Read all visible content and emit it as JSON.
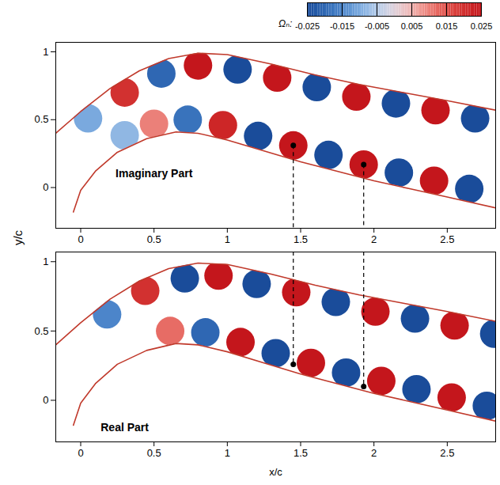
{
  "chart_data": [
    {
      "type": "contour",
      "xlim": [
        -0.17,
        2.83
      ],
      "xticks": [
        0,
        0.5,
        1,
        1.5,
        2,
        2.5
      ],
      "ylim": [
        -0.3,
        1.07
      ],
      "yticks": [
        0,
        0.5,
        1
      ],
      "colorbar": {
        "label": "Ωₙ:",
        "range": [
          -0.025,
          0.025
        ],
        "ticks": [
          -0.025,
          -0.015,
          -0.005,
          0.005,
          0.015,
          0.025
        ]
      },
      "annotations": [
        {
          "text": "Imaginary Part",
          "x": 0.5,
          "y": 0.1
        }
      ],
      "upper_boundary": {
        "x": [
          -0.17,
          0,
          0.2,
          0.4,
          0.6,
          0.8,
          1.0,
          1.3,
          1.6,
          1.9,
          2.2,
          2.5,
          2.83
        ],
        "y": [
          0.4,
          0.56,
          0.73,
          0.86,
          0.95,
          0.99,
          0.98,
          0.91,
          0.83,
          0.76,
          0.7,
          0.64,
          0.57
        ]
      },
      "lower_boundary": {
        "x": [
          -0.05,
          0,
          0.1,
          0.25,
          0.45,
          0.65,
          0.8,
          1.0,
          1.25,
          1.5,
          1.75,
          2.0,
          2.25,
          2.5,
          2.83
        ],
        "y": [
          -0.18,
          -0.02,
          0.12,
          0.26,
          0.36,
          0.41,
          0.4,
          0.35,
          0.27,
          0.19,
          0.12,
          0.05,
          -0.01,
          -0.07,
          -0.15
        ]
      },
      "cells": {
        "x": [
          0.05,
          0.3,
          0.55,
          0.8,
          1.07,
          1.34,
          1.61,
          1.88,
          2.15,
          2.42,
          2.69,
          0.3,
          0.5,
          0.73,
          0.97,
          1.21,
          1.45,
          1.69,
          1.93,
          2.17,
          2.41,
          2.65
        ],
        "y": [
          0.51,
          0.7,
          0.84,
          0.9,
          0.87,
          0.81,
          0.74,
          0.67,
          0.62,
          0.57,
          0.51,
          0.385,
          0.47,
          0.5,
          0.46,
          0.38,
          0.31,
          0.24,
          0.17,
          0.11,
          0.05,
          -0.01
        ],
        "values": [
          -0.01,
          0.02,
          -0.02,
          0.025,
          -0.025,
          0.025,
          -0.025,
          0.025,
          -0.025,
          0.025,
          -0.025,
          -0.008,
          0.01,
          -0.018,
          0.022,
          -0.025,
          0.025,
          -0.025,
          0.025,
          -0.025,
          0.025,
          -0.025
        ]
      },
      "markers": {
        "x": [
          1.45,
          1.93
        ],
        "y": [
          0.31,
          0.17
        ],
        "marker": "dot",
        "line_style": "dashed"
      }
    },
    {
      "type": "contour",
      "xlabel": "x/c",
      "ylabel": "y/c",
      "xlim": [
        -0.17,
        2.83
      ],
      "xticks": [
        0,
        0.5,
        1,
        1.5,
        2,
        2.5
      ],
      "ylim": [
        -0.3,
        1.07
      ],
      "yticks": [
        0,
        0.5,
        1
      ],
      "annotations": [
        {
          "text": "Real Part",
          "x": 0.3,
          "y": -0.2
        }
      ],
      "upper_boundary": {
        "x": [
          -0.17,
          0,
          0.2,
          0.4,
          0.6,
          0.8,
          1.0,
          1.3,
          1.6,
          1.9,
          2.2,
          2.5,
          2.83
        ],
        "y": [
          0.4,
          0.56,
          0.73,
          0.86,
          0.95,
          0.99,
          0.98,
          0.91,
          0.83,
          0.76,
          0.7,
          0.64,
          0.57
        ]
      },
      "lower_boundary": {
        "x": [
          -0.05,
          0,
          0.1,
          0.25,
          0.45,
          0.65,
          0.8,
          1.0,
          1.25,
          1.5,
          1.75,
          2.0,
          2.25,
          2.5,
          2.83
        ],
        "y": [
          -0.18,
          -0.02,
          0.12,
          0.26,
          0.36,
          0.41,
          0.4,
          0.35,
          0.27,
          0.19,
          0.12,
          0.05,
          -0.01,
          -0.07,
          -0.15
        ]
      },
      "cells": {
        "x": [
          0.18,
          0.44,
          0.71,
          0.94,
          1.2,
          1.47,
          1.74,
          2.01,
          2.28,
          2.55,
          2.82,
          0.61,
          0.85,
          1.09,
          1.33,
          1.57,
          1.81,
          2.05,
          2.29,
          2.53,
          2.77
        ],
        "y": [
          0.62,
          0.79,
          0.88,
          0.9,
          0.84,
          0.78,
          0.71,
          0.64,
          0.59,
          0.54,
          0.48,
          0.5,
          0.49,
          0.42,
          0.34,
          0.27,
          0.2,
          0.14,
          0.08,
          0.02,
          -0.04
        ],
        "values": [
          -0.015,
          0.02,
          -0.025,
          0.025,
          -0.025,
          0.025,
          -0.025,
          0.025,
          -0.025,
          0.025,
          -0.025,
          0.012,
          -0.02,
          0.025,
          -0.025,
          0.025,
          -0.025,
          0.025,
          -0.025,
          0.025,
          -0.025
        ]
      },
      "markers": {
        "x": [
          1.45,
          1.93
        ],
        "y": [
          0.26,
          0.1
        ],
        "marker": "dot",
        "line_style": "dashed"
      }
    }
  ]
}
